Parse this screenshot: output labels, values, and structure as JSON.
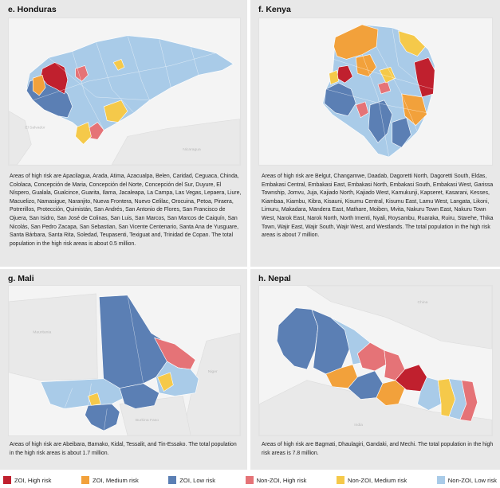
{
  "colors": {
    "zoi_high": "#c0202e",
    "zoi_medium": "#f2a13b",
    "zoi_low": "#5b7fb4",
    "nonzoi_high": "#e57377",
    "nonzoi_medium": "#f5c94a",
    "nonzoi_low": "#a9cbe8"
  },
  "panels": {
    "honduras": {
      "title": "e. Honduras",
      "text": "Areas of high risk are Apacilagua, Arada, Atima, Azacualpa, Belen, Caridad, Ceguaca, Chinda, Cololaca, Concepción de Maria, Concepción del Norte, Concepción del Sur, Duyure, El Níspero, Gualala, Gualcince, Guarita, Ilama, Jacaleapa, La Campa, Las Vegas, Lepaera, Liure, Macuelizo, Namasigue, Naranjito, Nueva Frontera, Nuevo Celilac, Orocuina, Petoa, Piraera, Potrerillos, Protección, Quimistán, San Andrés, San Antonio de Flores, San Francisco de Ojuera, San Isidro, San José de Colinas, San Luis, San Marcos, San Marcos de Caiquín, San Nicolás, San Pedro Zacapa, San Sebastian, San Vicente Centenario, Santa Ana de Yusguare, Santa Bárbara, Santa Rita, Soledad, Teupasenti, Texiguat and, Trinidad de Copan. The total population in the high risk areas is about 0.5 million."
    },
    "kenya": {
      "title": "f. Kenya",
      "text": "Areas of high risk are Belgut, Changamwe, Daadab, Dagoretti North, Dagoretti South, Eldas, Embakasi Central, Embakasi East, Embakasi North, Embakasi South, Embakasi West, Garissa Township, Jomvu, Juja, Kajiado North, Kajiado West, Kamukunji, Kapseret, Kasarani, Kesses, Kiambaa, Kiambu, Kibra, Kisauni, Kisumu Central, Kisumu East, Lamu West, Langata, Likoni, Limuru, Makadara, Mandera East, Mathare, Moiben, Mvita, Nakuru Town East, Nakuru Town West, Narok East, Narok North, North Imenti, Nyali, Roysambu, Ruaraka, Ruiru, Starehe, Thika Town, Wajir East, Wajir South, Wajir West, and Westlands. The total population in the high risk areas is about 7 million."
    },
    "mali": {
      "title": "g. Mali",
      "text": "Areas of high risk are Abeibara, Bamako, Kidal, Tessalit, and Tin-Essako. The total population in the high risk areas is about 1.7 million."
    },
    "nepal": {
      "title": "h. Nepal",
      "text": "Areas of high risk are Bagmati, Dhaulagiri, Gandaki, and Mechi. The total population in the high risk areas is 7.8 million."
    }
  },
  "map_labels": {
    "el_salvador": "El Salvador",
    "nicaragua": "Nicaragua",
    "mauritania": "Mauritania",
    "niger": "Niger",
    "burkina_faso": "Burkina Faso",
    "india": "India",
    "china": "China"
  },
  "legend": [
    {
      "key": "zoi_high",
      "label": "ZOI, High risk",
      "color": "#c0202e"
    },
    {
      "key": "zoi_medium",
      "label": "ZOI, Medium risk",
      "color": "#f2a13b"
    },
    {
      "key": "zoi_low",
      "label": "ZOI, Low risk",
      "color": "#5b7fb4"
    },
    {
      "key": "nonzoi_high",
      "label": "Non-ZOI, High risk",
      "color": "#e57377"
    },
    {
      "key": "nonzoi_medium",
      "label": "Non-ZOI, Medium risk",
      "color": "#f5c94a"
    },
    {
      "key": "nonzoi_low",
      "label": "Non-ZOI, Low risk",
      "color": "#a9cbe8"
    }
  ]
}
